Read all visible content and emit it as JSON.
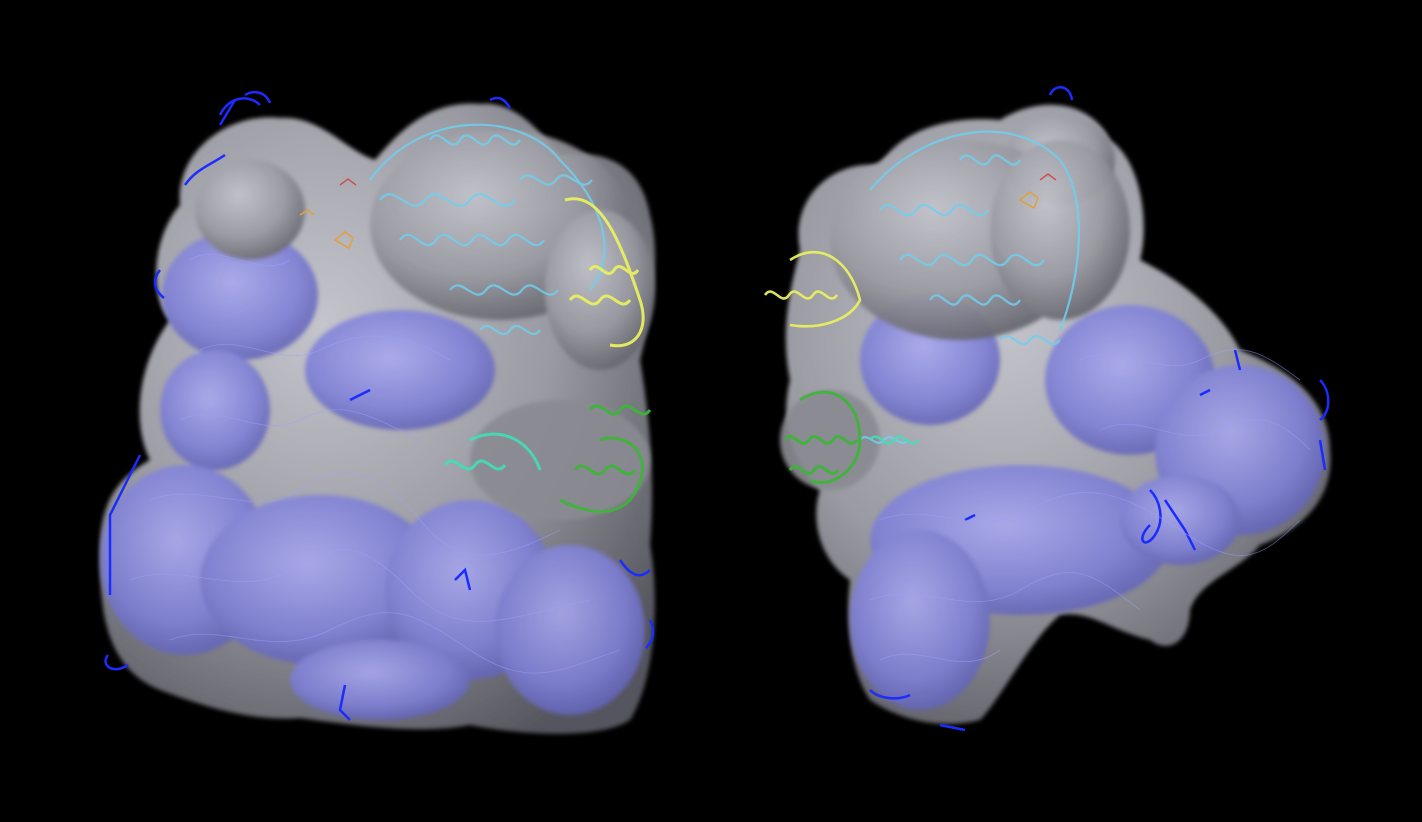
{
  "scene": {
    "background_color": "#000000",
    "colors": {
      "density_map": "#8f8f96",
      "density_shadow": "#4a4a52",
      "density_highlight": "#c2c2c8",
      "rna_backbone": "#1a2cff",
      "rna_in_density": "#8f8fe8",
      "protein_cyan": "#6fd0f0",
      "protein_yellow": "#e8f060",
      "protein_green": "#3fb43a",
      "protein_teal": "#40e0b8",
      "ligand_orange": "#e0a040",
      "ligand_red": "#d05050"
    },
    "views": [
      {
        "name": "front-view",
        "chains": [
          "rna_backbone",
          "protein_cyan",
          "protein_yellow",
          "protein_green",
          "protein_teal",
          "ligand_orange"
        ]
      },
      {
        "name": "rotated-view",
        "chains": [
          "rna_backbone",
          "protein_cyan",
          "protein_yellow",
          "protein_green",
          "protein_teal",
          "ligand_orange"
        ]
      }
    ]
  }
}
